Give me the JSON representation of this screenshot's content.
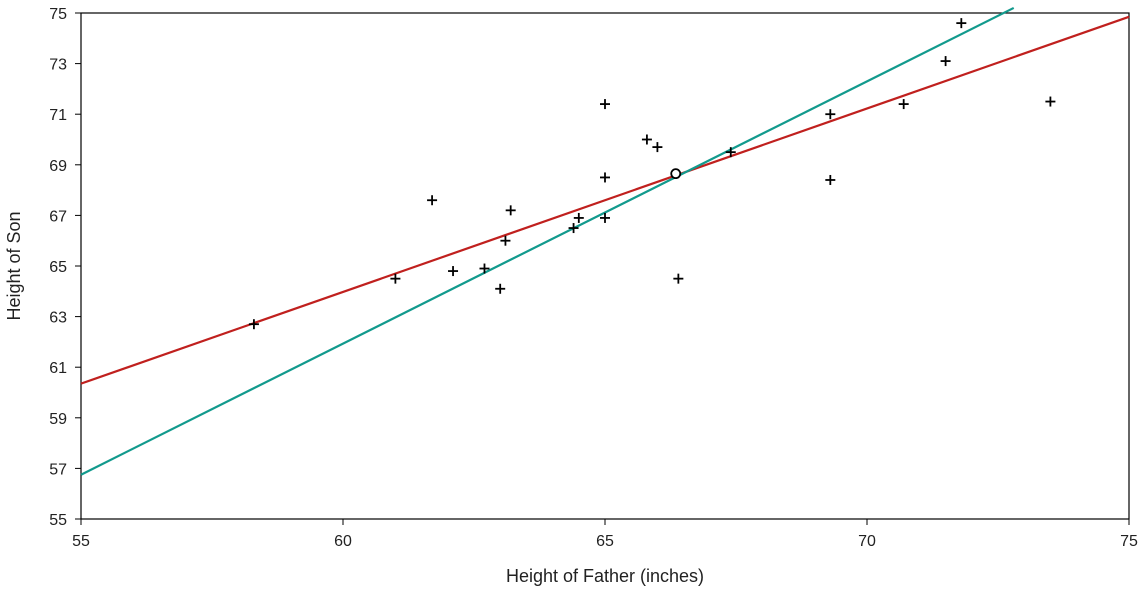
{
  "chart_data": {
    "type": "scatter",
    "title": "",
    "xlabel": "Height of Father (inches)",
    "ylabel": "Height of Son",
    "xlim": [
      55,
      75
    ],
    "ylim": [
      55,
      75
    ],
    "x_ticks": [
      55,
      60,
      65,
      70,
      75
    ],
    "y_ticks": [
      55,
      57,
      59,
      61,
      63,
      65,
      67,
      69,
      71,
      73,
      75
    ],
    "grid": false,
    "legend": "none",
    "series": [
      {
        "marker": "plus",
        "color": "#000000",
        "points": [
          [
            58.3,
            62.7
          ],
          [
            61.0,
            64.5
          ],
          [
            61.7,
            67.6
          ],
          [
            62.1,
            64.8
          ],
          [
            62.7,
            64.9
          ],
          [
            63.0,
            64.1
          ],
          [
            63.1,
            66.0
          ],
          [
            63.2,
            67.2
          ],
          [
            64.4,
            66.5
          ],
          [
            64.5,
            66.9
          ],
          [
            65.0,
            71.4
          ],
          [
            65.0,
            68.5
          ],
          [
            65.0,
            66.9
          ],
          [
            65.8,
            70.0
          ],
          [
            66.0,
            69.7
          ],
          [
            66.4,
            64.5
          ],
          [
            67.4,
            69.5
          ],
          [
            69.3,
            71.0
          ],
          [
            69.3,
            68.4
          ],
          [
            70.7,
            71.4
          ],
          [
            71.5,
            73.1
          ],
          [
            71.8,
            74.6
          ],
          [
            73.5,
            71.5
          ]
        ]
      },
      {
        "marker": "circle",
        "color": "#000000",
        "points": [
          [
            66.35,
            68.65
          ]
        ]
      }
    ],
    "lines": [
      {
        "color": "#c0201e",
        "from": [
          55,
          60.35
        ],
        "to": [
          75,
          74.85
        ]
      },
      {
        "color": "#129a8d",
        "from": [
          55,
          56.75
        ],
        "to": [
          72.8,
          75.2
        ]
      }
    ]
  }
}
